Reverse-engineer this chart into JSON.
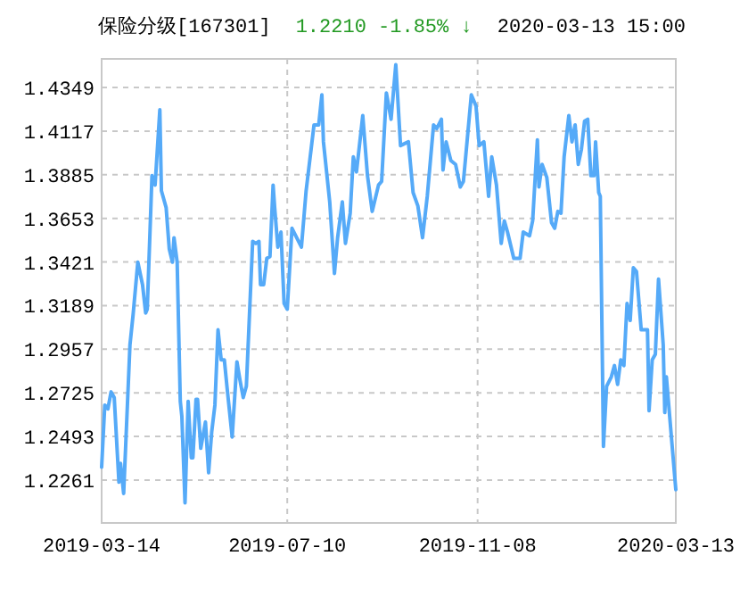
{
  "chart_data": {
    "type": "line",
    "title": "保险分级[167301]",
    "subtitle": "1.2210  -1.85% ↓",
    "annotations": [
      "2020-03-13 15:00"
    ],
    "xlim": [
      "2019-03-14",
      "2020-03-13"
    ],
    "xticks": [
      "2019-03-14",
      "2019-07-10",
      "2019-11-08",
      "2020-03-13"
    ],
    "ylim": [
      1.2033,
      1.4501
    ],
    "yticks": [
      1.2261,
      1.2493,
      1.2725,
      1.2957,
      1.3189,
      1.3421,
      1.3653,
      1.3885,
      1.4117,
      1.4349
    ],
    "grid": true,
    "marker": "none",
    "line_style": "solid",
    "series": [
      {
        "color": "#55aaf8",
        "x": [
          "2019-03-14",
          "2019-03-16",
          "2019-03-18",
          "2019-03-20",
          "2019-03-22",
          "2019-03-25",
          "2019-03-26",
          "2019-03-28",
          "2019-04-01",
          "2019-04-03",
          "2019-04-06",
          "2019-04-09",
          "2019-04-11",
          "2019-04-12",
          "2019-04-15",
          "2019-04-17",
          "2019-04-20",
          "2019-04-21",
          "2019-04-24",
          "2019-04-26",
          "2019-04-28",
          "2019-04-29",
          "2019-05-01",
          "2019-05-03",
          "2019-05-04",
          "2019-05-06",
          "2019-05-08",
          "2019-05-10",
          "2019-05-11",
          "2019-05-13",
          "2019-05-14",
          "2019-05-16",
          "2019-05-19",
          "2019-05-21",
          "2019-05-23",
          "2019-05-25",
          "2019-05-27",
          "2019-05-29",
          "2019-05-31",
          "2019-06-02",
          "2019-06-05",
          "2019-06-08",
          "2019-06-10",
          "2019-06-12",
          "2019-06-14",
          "2019-06-18",
          "2019-06-20",
          "2019-06-22",
          "2019-06-23",
          "2019-06-25",
          "2019-06-27",
          "2019-06-29",
          "2019-07-01",
          "2019-07-02",
          "2019-07-04",
          "2019-07-06",
          "2019-07-08",
          "2019-07-10",
          "2019-07-13",
          "2019-07-19",
          "2019-07-22",
          "2019-07-27",
          "2019-07-30",
          "2019-08-01",
          "2019-08-02",
          "2019-08-06",
          "2019-08-09",
          "2019-08-11",
          "2019-08-14",
          "2019-08-16",
          "2019-08-19",
          "2019-08-21",
          "2019-08-23",
          "2019-08-27",
          "2019-08-30",
          "2019-09-02",
          "2019-09-06",
          "2019-09-08",
          "2019-09-11",
          "2019-09-14",
          "2019-09-17",
          "2019-09-20",
          "2019-09-25",
          "2019-09-28",
          "2019-10-01",
          "2019-10-04",
          "2019-10-07",
          "2019-10-11",
          "2019-10-13",
          "2019-10-16",
          "2019-10-17",
          "2019-10-19",
          "2019-10-22",
          "2019-10-25",
          "2019-10-28",
          "2019-10-30",
          "2019-11-04",
          "2019-11-07",
          "2019-11-09",
          "2019-11-12",
          "2019-11-15",
          "2019-11-17",
          "2019-11-20",
          "2019-11-23",
          "2019-11-25",
          "2019-11-27",
          "2019-12-01",
          "2019-12-05",
          "2019-12-07",
          "2019-12-11",
          "2019-12-13",
          "2019-12-16",
          "2019-12-17",
          "2019-12-19",
          "2019-12-22",
          "2019-12-25",
          "2019-12-27",
          "2019-12-29",
          "2019-12-31",
          "2020-01-02",
          "2020-01-05",
          "2020-01-07",
          "2020-01-09",
          "2020-01-11",
          "2020-01-13",
          "2020-01-15",
          "2020-01-17",
          "2020-01-19",
          "2020-01-21",
          "2020-01-22",
          "2020-01-24",
          "2020-01-25",
          "2020-01-27",
          "2020-01-29",
          "2020-02-01",
          "2020-02-03",
          "2020-02-05",
          "2020-02-07",
          "2020-02-09",
          "2020-02-11",
          "2020-02-13",
          "2020-02-15",
          "2020-02-17",
          "2020-02-20",
          "2020-02-24",
          "2020-02-25",
          "2020-02-27",
          "2020-02-29",
          "2020-03-02",
          "2020-03-05",
          "2020-03-06",
          "2020-03-07",
          "2020-03-13"
        ],
        "values": [
          1.233,
          1.266,
          1.264,
          1.273,
          1.27,
          1.225,
          1.235,
          1.219,
          1.298,
          1.314,
          1.342,
          1.33,
          1.315,
          1.317,
          1.388,
          1.383,
          1.423,
          1.38,
          1.371,
          1.349,
          1.342,
          1.355,
          1.342,
          1.268,
          1.26,
          1.214,
          1.268,
          1.238,
          1.238,
          1.269,
          1.269,
          1.243,
          1.257,
          1.23,
          1.252,
          1.266,
          1.306,
          1.29,
          1.29,
          1.273,
          1.249,
          1.289,
          1.279,
          1.27,
          1.276,
          1.353,
          1.352,
          1.353,
          1.33,
          1.33,
          1.344,
          1.345,
          1.383,
          1.371,
          1.35,
          1.358,
          1.32,
          1.317,
          1.36,
          1.35,
          1.38,
          1.415,
          1.415,
          1.431,
          1.406,
          1.374,
          1.336,
          1.355,
          1.374,
          1.352,
          1.368,
          1.398,
          1.39,
          1.42,
          1.388,
          1.369,
          1.383,
          1.385,
          1.432,
          1.418,
          1.447,
          1.404,
          1.406,
          1.379,
          1.372,
          1.355,
          1.377,
          1.415,
          1.413,
          1.418,
          1.391,
          1.406,
          1.396,
          1.394,
          1.382,
          1.385,
          1.431,
          1.425,
          1.404,
          1.406,
          1.377,
          1.398,
          1.383,
          1.352,
          1.364,
          1.358,
          1.344,
          1.344,
          1.358,
          1.356,
          1.364,
          1.407,
          1.382,
          1.394,
          1.387,
          1.363,
          1.36,
          1.369,
          1.368,
          1.398,
          1.42,
          1.406,
          1.415,
          1.394,
          1.402,
          1.417,
          1.418,
          1.388,
          1.388,
          1.406,
          1.379,
          1.377,
          1.244,
          1.276,
          1.281,
          1.287,
          1.277,
          1.29,
          1.287,
          1.32,
          1.311,
          1.339,
          1.337,
          1.306,
          1.306,
          1.263,
          1.29,
          1.293,
          1.333,
          1.298,
          1.262,
          1.281,
          1.221
        ]
      }
    ]
  }
}
